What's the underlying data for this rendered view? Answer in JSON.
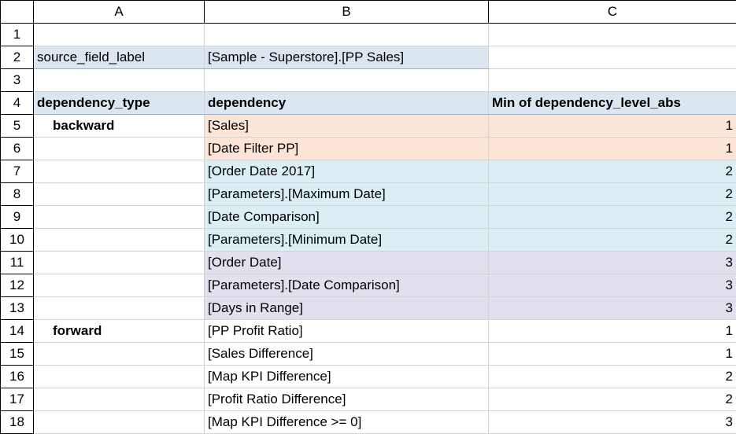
{
  "columns": [
    "A",
    "B",
    "C"
  ],
  "rows": [
    {
      "num": "1",
      "a": "",
      "b": "",
      "c": ""
    },
    {
      "num": "2",
      "a": "source_field_label",
      "b": "[Sample - Superstore].[PP Sales]",
      "c": ""
    },
    {
      "num": "3",
      "a": "",
      "b": "",
      "c": ""
    },
    {
      "num": "4",
      "a": "dependency_type",
      "b": "dependency",
      "c": "Min of dependency_level_abs"
    },
    {
      "num": "5",
      "a": "backward",
      "b": "[Sales]",
      "c": "1"
    },
    {
      "num": "6",
      "a": "",
      "b": "[Date Filter PP]",
      "c": "1"
    },
    {
      "num": "7",
      "a": "",
      "b": "[Order Date 2017]",
      "c": "2"
    },
    {
      "num": "8",
      "a": "",
      "b": "[Parameters].[Maximum Date]",
      "c": "2"
    },
    {
      "num": "9",
      "a": "",
      "b": "[Date Comparison]",
      "c": "2"
    },
    {
      "num": "10",
      "a": "",
      "b": "[Parameters].[Minimum Date]",
      "c": "2"
    },
    {
      "num": "11",
      "a": "",
      "b": "[Order Date]",
      "c": "3"
    },
    {
      "num": "12",
      "a": "",
      "b": "[Parameters].[Date Comparison]",
      "c": "3"
    },
    {
      "num": "13",
      "a": "",
      "b": "[Days in Range]",
      "c": "3"
    },
    {
      "num": "14",
      "a": "forward",
      "b": "[PP Profit Ratio]",
      "c": "1"
    },
    {
      "num": "15",
      "a": "",
      "b": "[Sales Difference]",
      "c": "1"
    },
    {
      "num": "16",
      "a": "",
      "b": "[Map KPI Difference]",
      "c": "2"
    },
    {
      "num": "17",
      "a": "",
      "b": "[Profit Ratio Difference]",
      "c": "2"
    },
    {
      "num": "18",
      "a": "",
      "b": "[Map KPI Difference >= 0]",
      "c": "3"
    }
  ],
  "colors": {
    "header_band": "#dce6f1",
    "level_1": "#fce4d6",
    "level_2": "#daeef3",
    "level_3": "#e4dfec"
  }
}
